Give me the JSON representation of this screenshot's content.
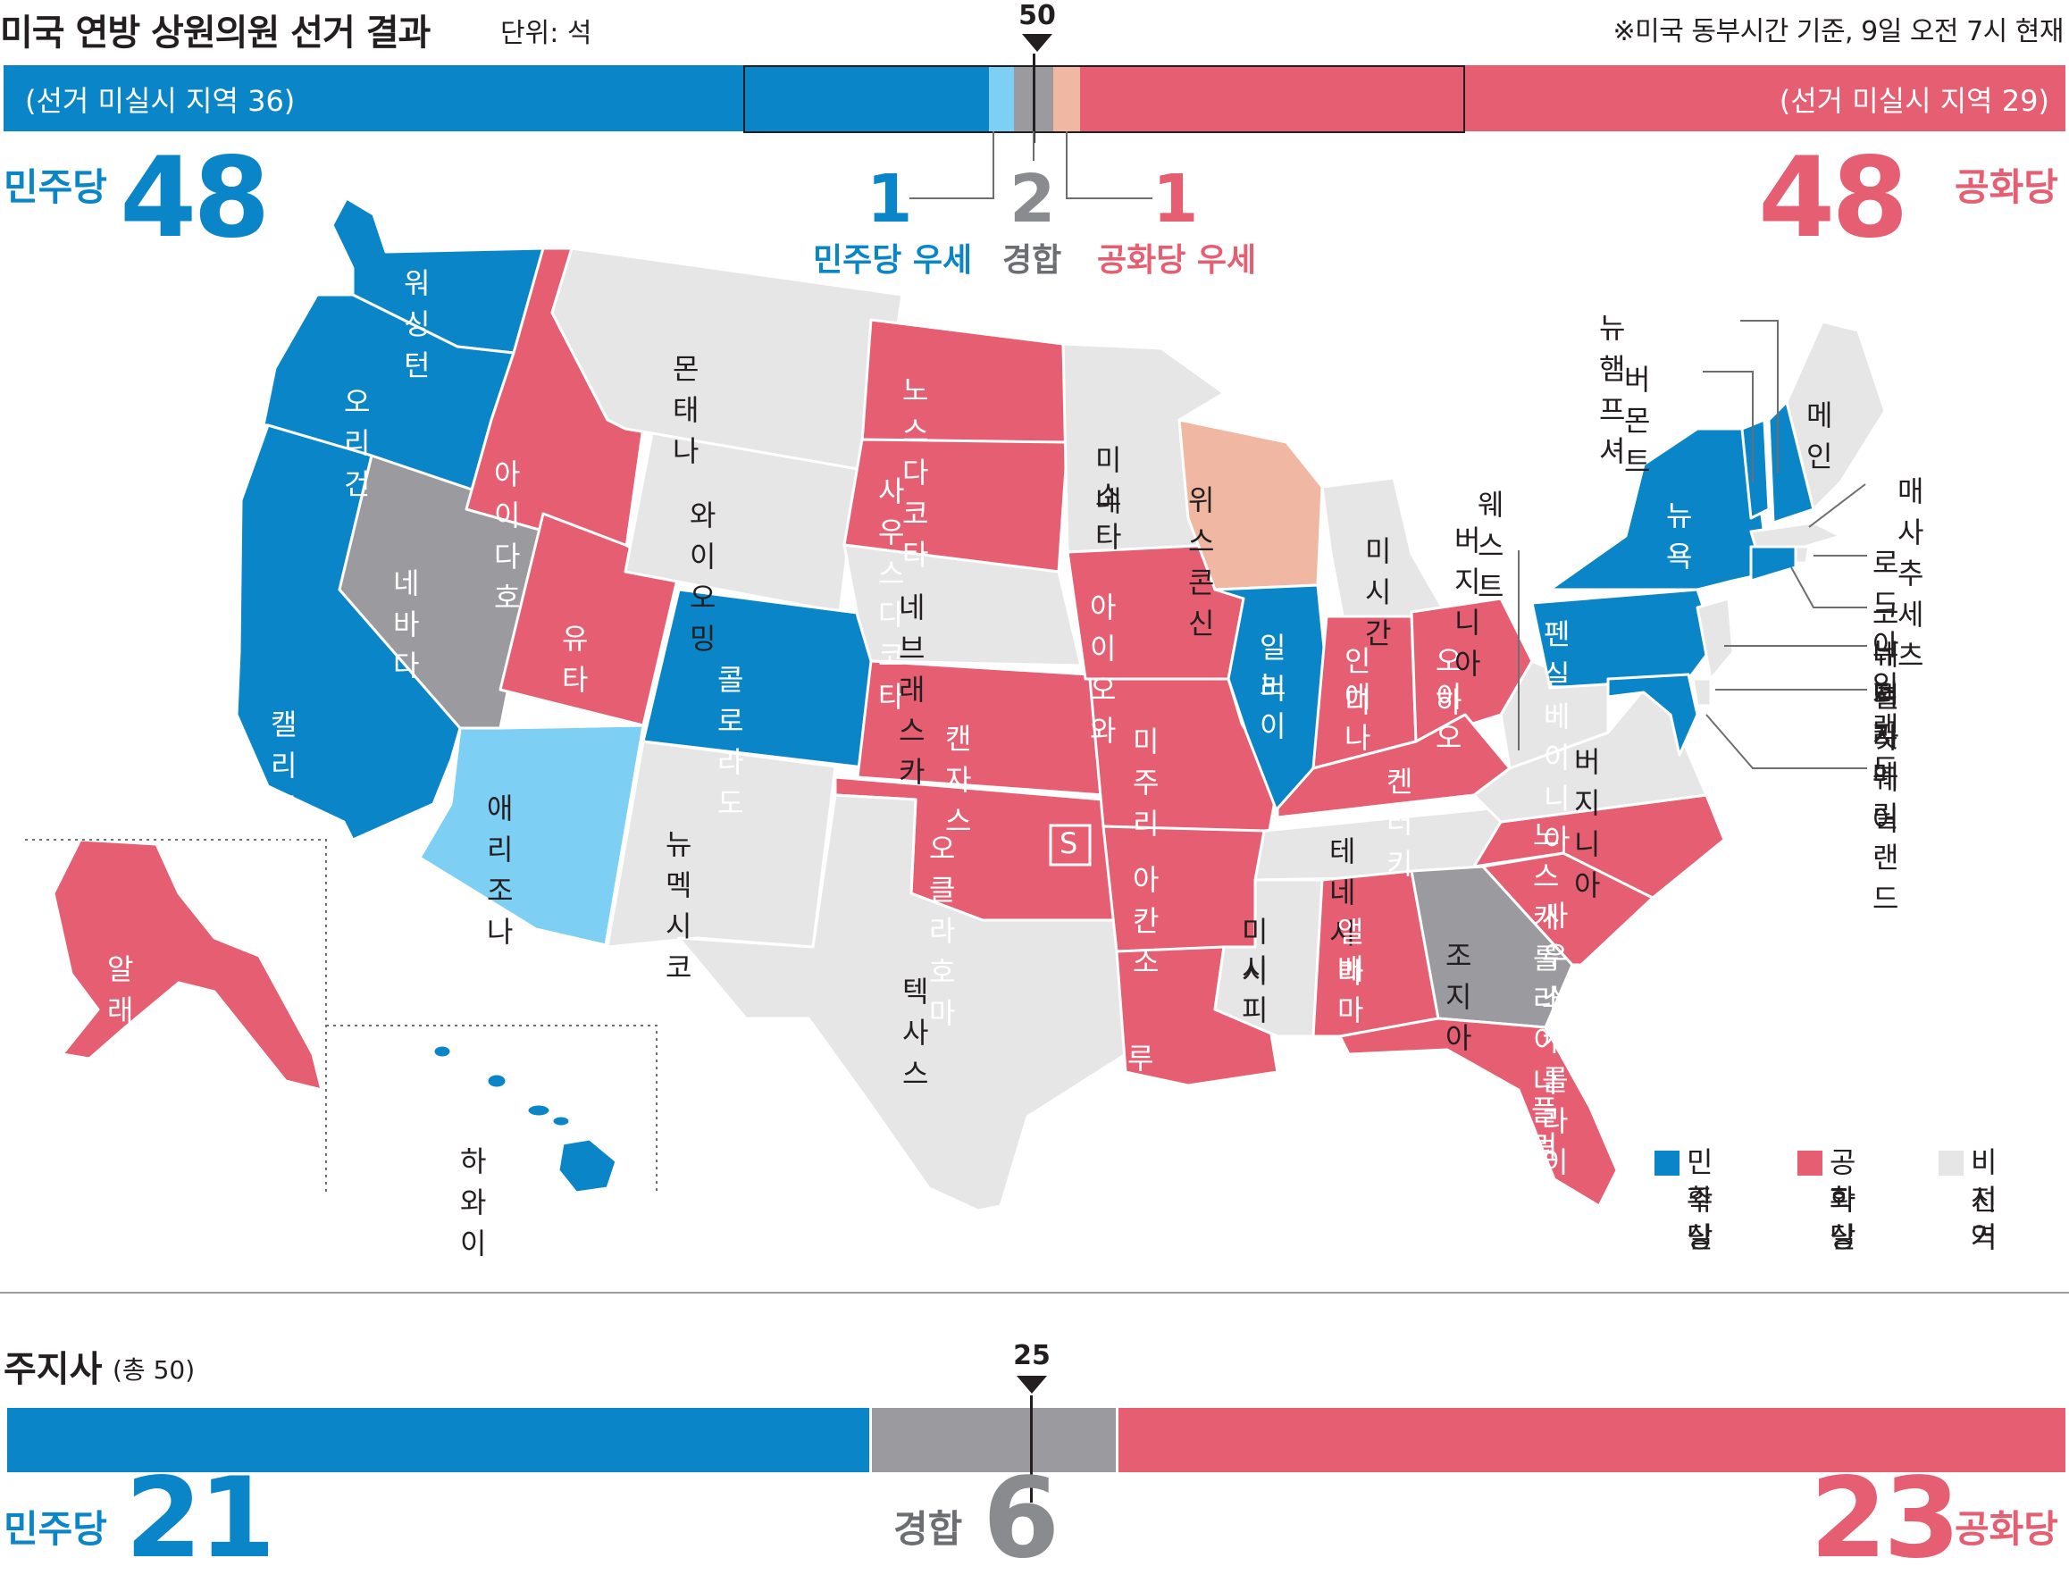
{
  "header": {
    "title": "미국 연방 상원의원 선거 결과",
    "unit": "단위: 석",
    "note": "※미국 동부시간 기준, 9일 오전 7시 현재",
    "majority_mark": "50"
  },
  "colors": {
    "dem": "#0a86c8",
    "dem_lean": "#7ecff4",
    "tossup": "#9b9b9f",
    "rep_lean": "#f0b8a2",
    "rep": "#e55e72",
    "non_election": "#e6e6e7"
  },
  "senate": {
    "dem_unelected": "(선거 미실시 지역 36)",
    "rep_unelected": "(선거 미실시 지역 29)",
    "dem_label": "민주당",
    "dem_seats": "48",
    "rep_label": "공화당",
    "rep_seats": "48",
    "dem_lean": {
      "value": "1",
      "label": "민주당 우세"
    },
    "tossup": {
      "value": "2",
      "label": "경합"
    },
    "rep_lean": {
      "value": "1",
      "label": "공화당 우세"
    }
  },
  "map": {
    "states": [
      {
        "name": "워싱턴",
        "status": "dem"
      },
      {
        "name": "오리건",
        "status": "dem"
      },
      {
        "name": "캘리포니아",
        "status": "dem"
      },
      {
        "name": "네바다",
        "status": "tossup"
      },
      {
        "name": "아이다호",
        "status": "rep"
      },
      {
        "name": "유타",
        "status": "rep"
      },
      {
        "name": "애리조나",
        "status": "dem_lean"
      },
      {
        "name": "몬태나",
        "status": "non_election"
      },
      {
        "name": "와이오밍",
        "status": "non_election"
      },
      {
        "name": "콜로라도",
        "status": "dem"
      },
      {
        "name": "뉴멕시코",
        "status": "non_election"
      },
      {
        "name": "노스다코타",
        "status": "rep"
      },
      {
        "name": "사우스다코타",
        "status": "rep"
      },
      {
        "name": "네브래스카",
        "status": "non_election"
      },
      {
        "name": "캔자스",
        "status": "rep"
      },
      {
        "name": "오클라호마",
        "status": "rep",
        "badge": "S"
      },
      {
        "name": "텍사스",
        "status": "non_election"
      },
      {
        "name": "미네소타",
        "status": "non_election"
      },
      {
        "name": "아이오와",
        "status": "rep"
      },
      {
        "name": "미주리",
        "status": "rep"
      },
      {
        "name": "아칸소",
        "status": "rep"
      },
      {
        "name": "루이지애나",
        "status": "rep"
      },
      {
        "name": "위스콘신",
        "status": "rep_lean"
      },
      {
        "name": "일리노이",
        "status": "dem"
      },
      {
        "name": "미시간",
        "status": "non_election"
      },
      {
        "name": "인디애나",
        "status": "rep"
      },
      {
        "name": "오하이오",
        "status": "rep"
      },
      {
        "name": "켄터키",
        "status": "rep"
      },
      {
        "name": "테네시",
        "status": "non_election"
      },
      {
        "name": "미시시피",
        "status": "non_election"
      },
      {
        "name": "앨라배마",
        "status": "rep"
      },
      {
        "name": "조지아",
        "status": "tossup"
      },
      {
        "name": "플로리다",
        "status": "rep"
      },
      {
        "name": "사우스캐롤라이나",
        "status": "rep"
      },
      {
        "name": "노스캐롤라이나",
        "status": "rep"
      },
      {
        "name": "버지니아",
        "status": "non_election"
      },
      {
        "name": "웨스트버지니아",
        "status": "non_election"
      },
      {
        "name": "펜실베이니아",
        "status": "dem"
      },
      {
        "name": "뉴욕",
        "status": "dem"
      },
      {
        "name": "버몬트",
        "status": "dem"
      },
      {
        "name": "뉴햄프셔",
        "status": "dem"
      },
      {
        "name": "메인",
        "status": "non_election"
      },
      {
        "name": "매사추세츠",
        "status": "non_election"
      },
      {
        "name": "로드아일랜드",
        "status": "non_election"
      },
      {
        "name": "코네티컷",
        "status": "dem"
      },
      {
        "name": "뉴저지",
        "status": "non_election"
      },
      {
        "name": "델라웨어",
        "status": "non_election"
      },
      {
        "name": "메릴랜드",
        "status": "dem"
      },
      {
        "name": "알래스카",
        "status": "rep"
      },
      {
        "name": "하와이",
        "status": "dem"
      }
    ],
    "labels": {
      "wa": "워싱턴",
      "or": "오리건",
      "ca": "캘리포니아",
      "nv": "네바다",
      "id": "아이다호",
      "ut": "유타",
      "az": "애리조나",
      "mt": "몬태나",
      "wy": "와이오밍",
      "co": "콜로라도",
      "nm": "뉴멕시코",
      "nd": "노스다코타",
      "sd": "사우스다코타",
      "ne": "네브래스카",
      "ks": "캔자스",
      "ok": "오클라호마",
      "ok_badge": "S",
      "tx": "텍사스",
      "mn_1": "미네",
      "mn_2": "소타",
      "ia": "아이오와",
      "mo": "미주리",
      "ar": "아칸소",
      "la": "루이지애나",
      "wi": "위스콘신",
      "il_1": "일리",
      "il_2": "노이",
      "mi": "미시간",
      "in_1": "인디",
      "in_2": "애나",
      "oh_1": "오하",
      "oh_2": "이오",
      "ky": "켄터키",
      "tn": "테네시",
      "ms_1": "미시",
      "ms_2": "시피",
      "al_1": "앨라",
      "al_2": "배마",
      "ga": "조지아",
      "fl_1": "플로",
      "fl_2": "리다",
      "sc": "사우스캐롤라이나",
      "nc": "노스캐롤라이나",
      "va": "버지니아",
      "wv_1": "웨스트",
      "wv_2": "버지니아",
      "pa": "펜실베이니아",
      "ny": "뉴욕",
      "vt": "버몬트",
      "nh": "뉴햄프셔",
      "me": "메인",
      "ma": "매사추세츠",
      "ri": "로드아일랜드",
      "ct": "코네티컷",
      "nj": "뉴저지",
      "de": "델라웨어",
      "md": "메릴랜드",
      "ak": "알래스카",
      "hi": "하와이"
    }
  },
  "legend": [
    {
      "line1": "민주당",
      "line2": "확실",
      "color": "#0a86c8"
    },
    {
      "line1": "공화당",
      "line2": "확실",
      "color": "#e55e72"
    },
    {
      "line1": "비선거",
      "line2": "지역",
      "color": "#e6e6e7"
    }
  ],
  "governors": {
    "title": "주지사",
    "total": "(총 50)",
    "majority_mark": "25",
    "dem_label": "민주당",
    "dem_value": 21,
    "dem_text": "21",
    "tossup_label": "경합",
    "tossup_value": 6,
    "tossup_text": "6",
    "rep_label": "공화당",
    "rep_value": 23,
    "rep_text": "23"
  }
}
